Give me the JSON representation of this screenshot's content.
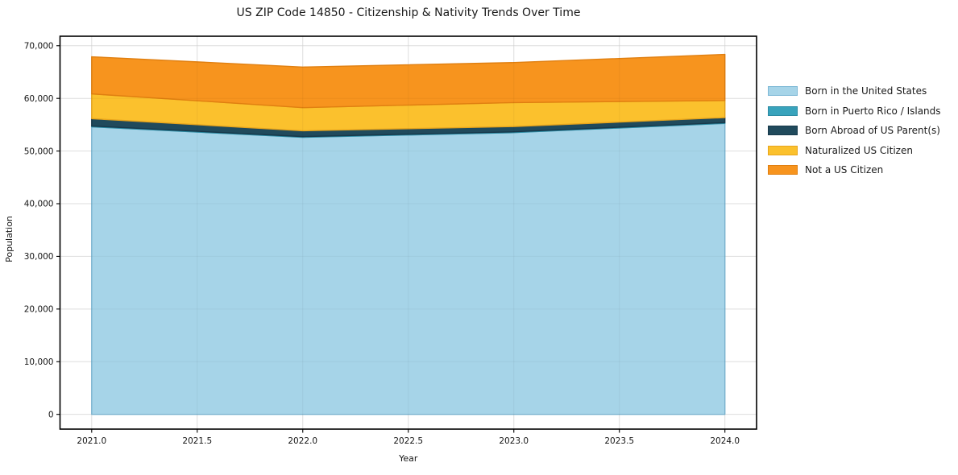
{
  "chart_data": {
    "type": "area",
    "stacked": true,
    "title": "US ZIP Code 14850 - Citizenship & Nativity Trends Over Time",
    "xlabel": "Year",
    "ylabel": "Population",
    "x": [
      2021,
      2022,
      2023,
      2024
    ],
    "series": [
      {
        "name": "Born in the United States",
        "color": "#A6D4E8",
        "edge": "#7EB9D6",
        "values": [
          54600,
          52600,
          53500,
          55250
        ]
      },
      {
        "name": "Born in Puerto Rico / Islands",
        "color": "#38A3BC",
        "edge": "#2C8BA3",
        "values": [
          150,
          150,
          150,
          150
        ]
      },
      {
        "name": "Born Abroad of US Parent(s)",
        "color": "#204A5C",
        "edge": "#17384A",
        "values": [
          1400,
          1100,
          1000,
          950
        ]
      },
      {
        "name": "Naturalized US Citizen",
        "color": "#FBC12D",
        "edge": "#E8A51C",
        "values": [
          4700,
          4400,
          4550,
          3250
        ]
      },
      {
        "name": "Not a US Citizen",
        "color": "#F7941E",
        "edge": "#E07F10",
        "values": [
          7050,
          7700,
          7600,
          8750
        ]
      }
    ],
    "totals": [
      67900,
      65950,
      66800,
      68350
    ],
    "xlim": [
      2020.85,
      2024.15
    ],
    "ylim": [
      -2800,
      71800
    ],
    "xticks": [
      2021.0,
      2021.5,
      2022.0,
      2022.5,
      2023.0,
      2023.5,
      2024.0
    ],
    "yticks": [
      0,
      10000,
      20000,
      30000,
      40000,
      50000,
      60000,
      70000
    ],
    "grid": true,
    "grid_color": "#E7E7E7",
    "legend_position": "outside-right"
  }
}
